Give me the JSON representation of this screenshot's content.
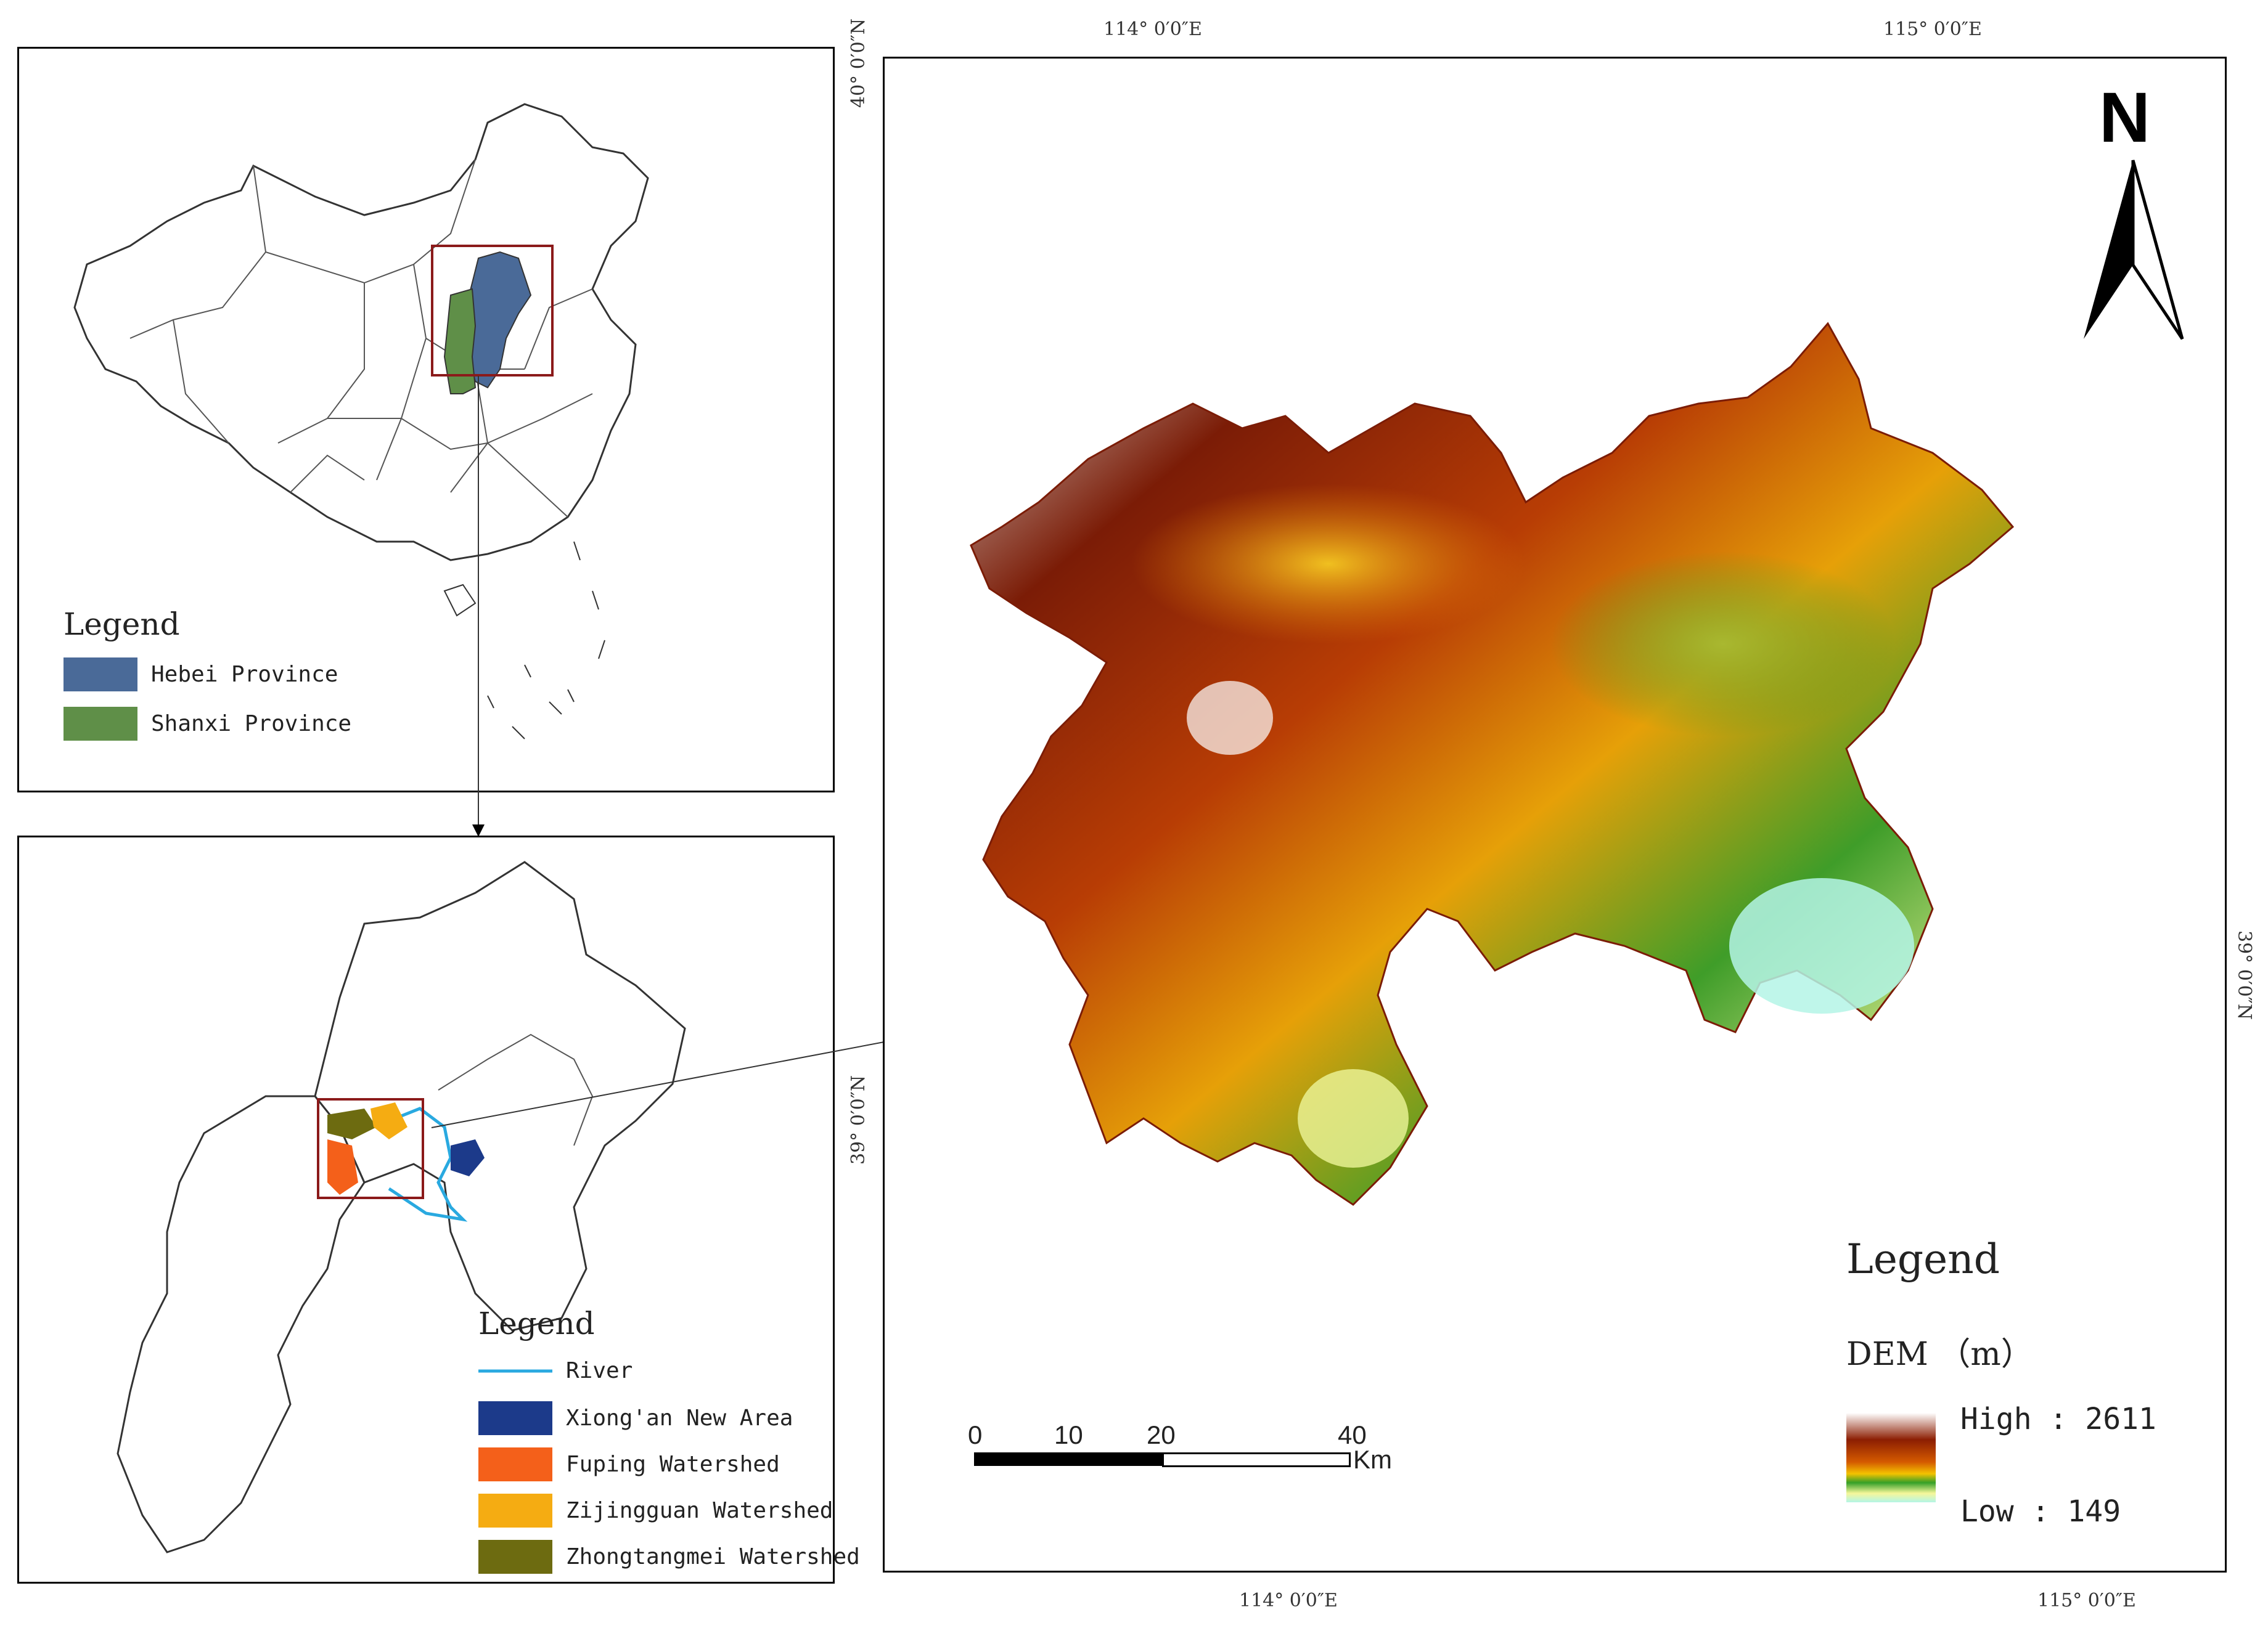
{
  "top_panel": {
    "legend_title": "Legend",
    "legend_items": [
      {
        "label": "Hebei Province",
        "color": "#4a6a98"
      },
      {
        "label": "Shanxi Province",
        "color": "#5f8f48"
      }
    ]
  },
  "bottom_panel": {
    "legend_title": "Legend",
    "legend_items": [
      {
        "label": "River",
        "color": "#29a9e0",
        "symbol": "line"
      },
      {
        "label": "Xiong'an New Area",
        "color": "#1c3a8a"
      },
      {
        "label": "Fuping Watershed",
        "color": "#f4601a"
      },
      {
        "label": "Zijingguan Watershed",
        "color": "#f5ac12"
      },
      {
        "label": "Zhongtangmei Watershed",
        "color": "#6d6b10"
      }
    ]
  },
  "main_map": {
    "coords": {
      "top_left": "114° 0′0″E",
      "top_right": "115° 0′0″E",
      "bottom_left": "114° 0′0″E",
      "bottom_right": "115° 0′0″E",
      "left_top": "40° 0′0″N",
      "left_bottom": "39° 0′0″N",
      "right": "39° 0′0″N"
    },
    "north_arrow_label": "N",
    "legend_title": "Legend",
    "dem_label": "DEM （m）",
    "high_label": "High : 2611",
    "low_label": "Low : 149",
    "scale_ticks": [
      "0",
      "10",
      "20",
      "40"
    ],
    "scale_unit": "Km",
    "dem_colors": [
      "#ffffff",
      "#8c1e02",
      "#d45a00",
      "#f4c200",
      "#35a028",
      "#f6f79a",
      "#b4f5e6"
    ]
  }
}
